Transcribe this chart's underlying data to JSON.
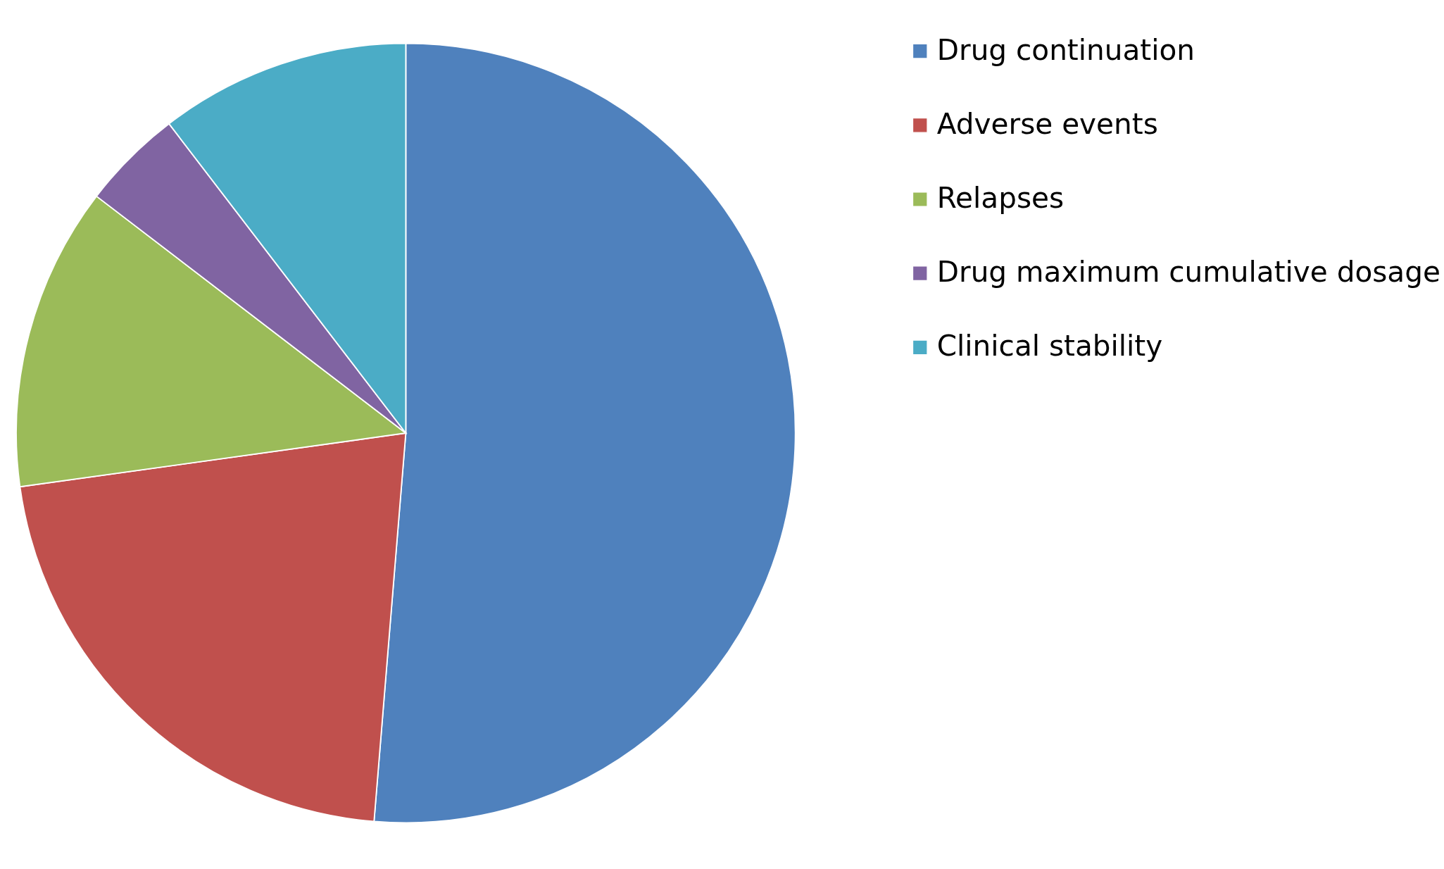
{
  "chart_data": {
    "type": "pie",
    "categories": [
      "Drug continuation",
      "Adverse events",
      "Relapses",
      "Drug maximum cumulative dosage",
      "Clinical stability"
    ],
    "values": [
      51.3,
      21.5,
      12.6,
      4.2,
      10.4
    ],
    "colors": [
      "#4f81bd",
      "#c0504d",
      "#9bbb59",
      "#8064a2",
      "#4bacc6"
    ],
    "legend": "right"
  }
}
